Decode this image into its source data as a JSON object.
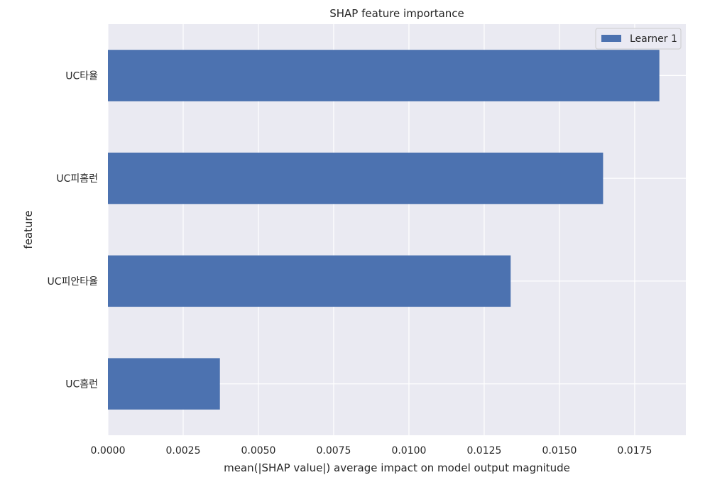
{
  "chart_data": {
    "type": "bar",
    "orientation": "horizontal",
    "title": "SHAP feature importance",
    "xlabel": "mean(|SHAP value|) average impact on model output magnitude",
    "ylabel": "feature",
    "categories": [
      "UC타율",
      "UC피홈런",
      "UC피안타율",
      "UC홈런"
    ],
    "series": [
      {
        "name": "Learner 1",
        "values": [
          0.01832,
          0.01645,
          0.01338,
          0.00372
        ]
      }
    ],
    "xlim": [
      0,
      0.0192
    ],
    "xticks": [
      "0.0000",
      "0.0025",
      "0.0050",
      "0.0075",
      "0.0100",
      "0.0125",
      "0.0150",
      "0.0175"
    ],
    "grid": true,
    "legend_position": "top-right",
    "colors": {
      "bar": "#4c72b0",
      "plot_bg": "#eaeaf2",
      "grid": "#ffffff"
    }
  }
}
